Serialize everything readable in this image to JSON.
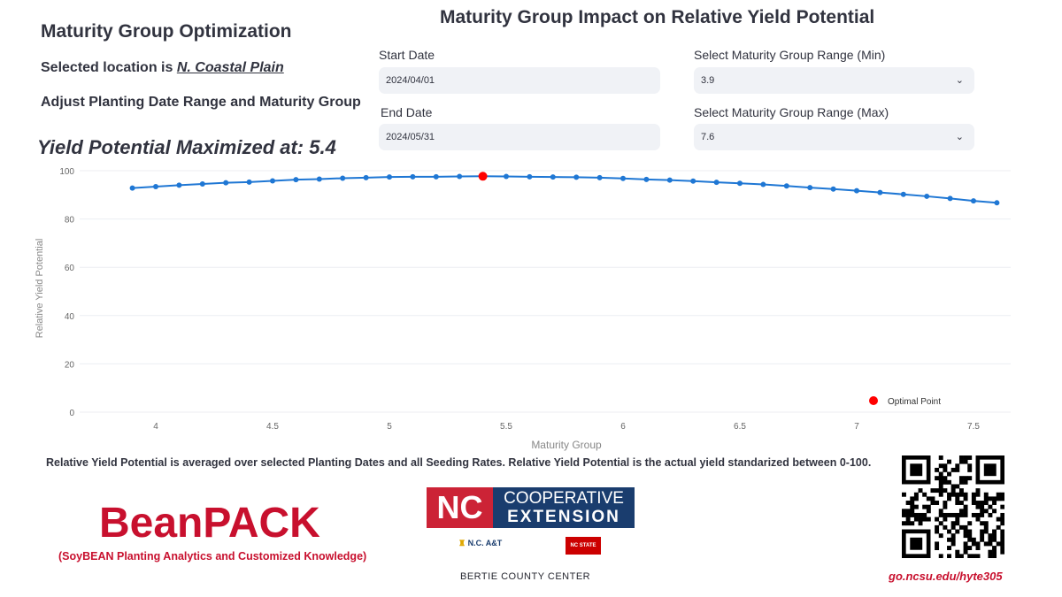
{
  "header": {
    "title": "Maturity Group Optimization",
    "location_prefix": "Selected location is ",
    "location": "N. Coastal Plain",
    "instruction": "Adjust Planting Date Range and Maturity Group",
    "maximized": "Yield Potential Maximized at: 5.4"
  },
  "controls": {
    "start_label": "Start Date",
    "start_value": "2024/04/01",
    "end_label": "End Date",
    "end_value": "2024/05/31",
    "min_label": "Select Maturity Group Range (Min)",
    "min_value": "3.9",
    "max_label": "Select Maturity Group Range (Max)",
    "max_value": "7.6"
  },
  "chart_data": {
    "type": "line",
    "title": "Maturity Group Impact on Relative Yield Potential",
    "xlabel": "Maturity Group",
    "ylabel": "Relative Yield Potential",
    "ylim": [
      0,
      100
    ],
    "xlim": [
      3.9,
      7.6
    ],
    "xticks": [
      "4",
      "4.5",
      "5",
      "5.5",
      "6",
      "6.5",
      "7",
      "7.5"
    ],
    "yticks": [
      "0",
      "20",
      "40",
      "60",
      "80",
      "100"
    ],
    "grid": true,
    "x": [
      3.9,
      4.0,
      4.1,
      4.2,
      4.3,
      4.4,
      4.5,
      4.6,
      4.7,
      4.8,
      4.9,
      5.0,
      5.1,
      5.2,
      5.3,
      5.4,
      5.5,
      5.6,
      5.7,
      5.8,
      5.9,
      6.0,
      6.1,
      6.2,
      6.3,
      6.4,
      6.5,
      6.6,
      6.7,
      6.8,
      6.9,
      7.0,
      7.1,
      7.2,
      7.3,
      7.4,
      7.5,
      7.6
    ],
    "y": [
      92.8,
      93.4,
      94.0,
      94.5,
      95.0,
      95.3,
      95.8,
      96.3,
      96.5,
      96.9,
      97.1,
      97.4,
      97.5,
      97.5,
      97.6,
      97.7,
      97.6,
      97.5,
      97.4,
      97.3,
      97.1,
      96.8,
      96.4,
      96.1,
      95.7,
      95.2,
      94.8,
      94.3,
      93.7,
      93.0,
      92.4,
      91.7,
      91.0,
      90.2,
      89.4,
      88.5,
      87.5,
      86.7
    ],
    "optimal": {
      "x": 5.4,
      "y": 97.7,
      "label": "Optimal Point"
    },
    "line_color": "#1f77d4",
    "optimal_color": "#ff0000",
    "legend": "bottom-right"
  },
  "footer": {
    "note": "Relative Yield Potential is averaged over selected Planting Dates and all Seeding Rates. Relative Yield Potential is the actual yield standarized between 0-100.",
    "brand": "BeanPACK",
    "brand_sub": "(SoyBEAN Planting Analytics and Customized Knowledge)",
    "nc": "NC",
    "coop1": "COOPERATIVE",
    "coop2": "EXTENSION",
    "ncat": "N.C. A&T",
    "ncstate": "NC STATE",
    "county": "BERTIE COUNTY CENTER",
    "url": "go.ncsu.edu/hyte305"
  }
}
